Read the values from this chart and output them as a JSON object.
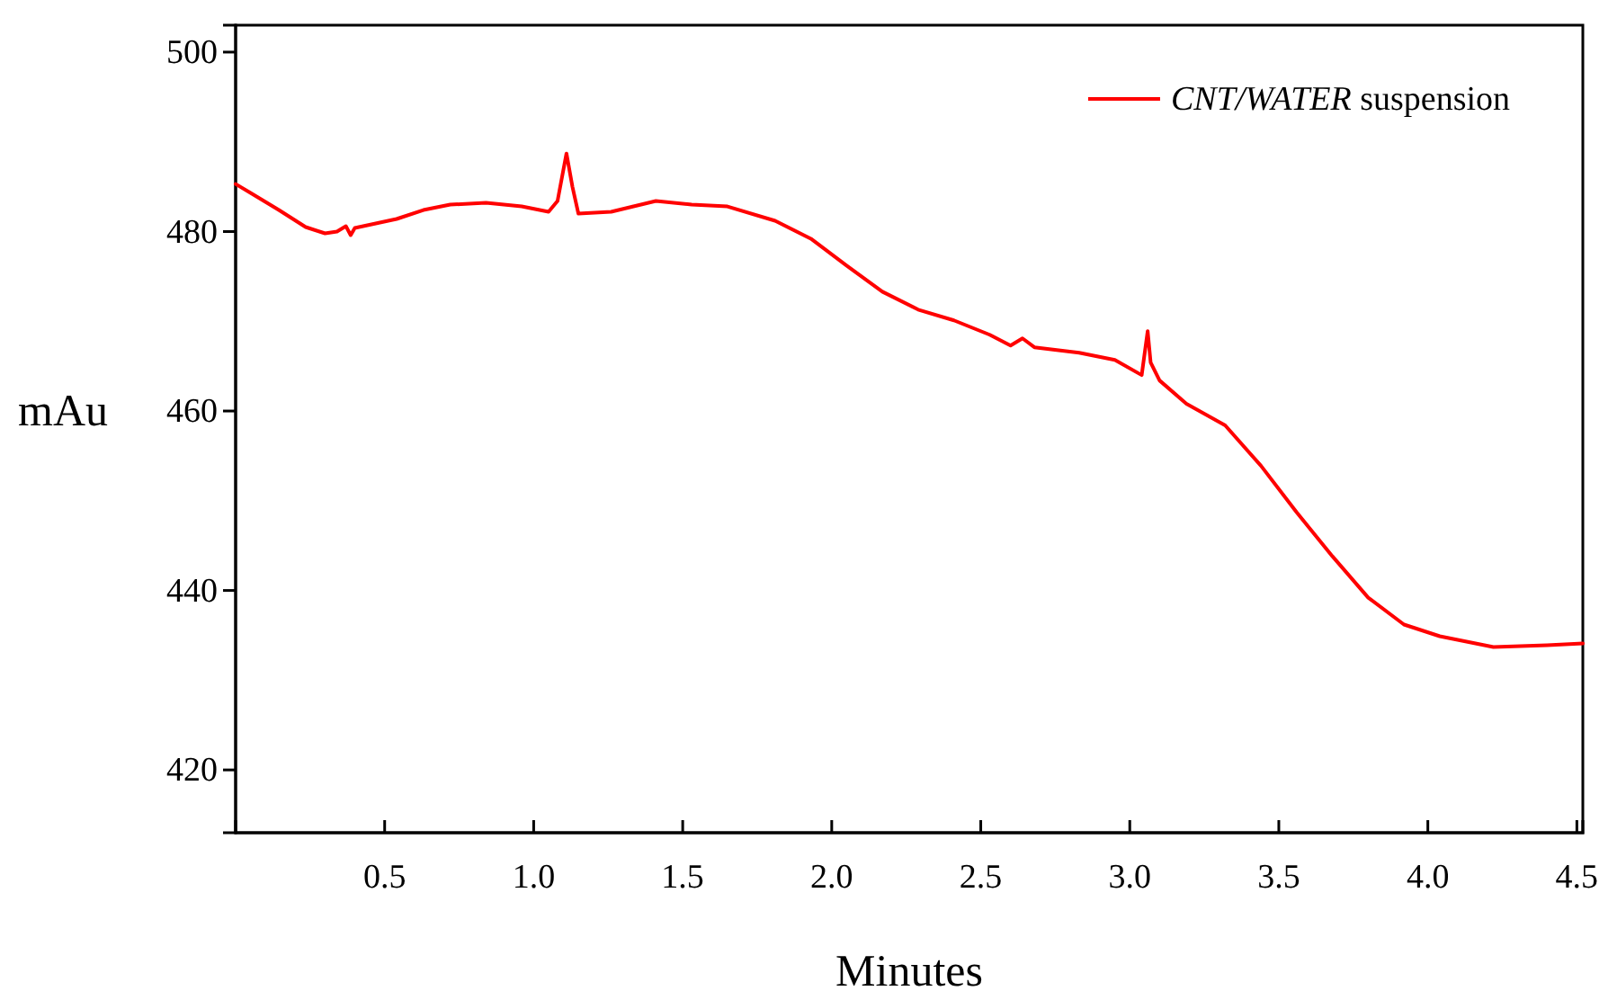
{
  "chart_data": {
    "type": "line",
    "xlabel": "Minutes",
    "ylabel": "mAu",
    "xlim": [
      0,
      4.52
    ],
    "ylim": [
      413,
      503
    ],
    "xticks": [
      0.5,
      {
        "value": 1,
        "label": "1.0"
      },
      1.5,
      {
        "value": 2,
        "label": "2.0"
      },
      2.5,
      {
        "value": 3,
        "label": "3.0"
      },
      3.5,
      {
        "value": 4,
        "label": "4.0"
      },
      4.5
    ],
    "yticks": [
      420,
      440,
      460,
      480,
      500
    ],
    "grid": false,
    "legend": "top right",
    "marker": "none",
    "line_style": "solid",
    "series": [
      {
        "name": "CNT/WATER suspension",
        "color": "#ff0000",
        "x": [
          0,
          0.05,
          0.145,
          0.235,
          0.3,
          0.34,
          0.37,
          0.386,
          0.4,
          0.54,
          0.63,
          0.72,
          0.84,
          0.96,
          1.05,
          1.08,
          1.11,
          1.13,
          1.15,
          1.26,
          1.41,
          1.53,
          1.65,
          1.81,
          1.93,
          2.05,
          2.17,
          2.29,
          2.41,
          2.53,
          2.6,
          2.64,
          2.68,
          2.83,
          2.95,
          3.04,
          3.06,
          3.07,
          3.1,
          3.19,
          3.32,
          3.44,
          3.56,
          3.68,
          3.8,
          3.92,
          4.04,
          4.22,
          4.4,
          4.52
        ],
        "values": [
          485.3,
          484.3,
          482.4,
          480.5,
          479.8,
          480,
          480.6,
          479.6,
          480.4,
          481.4,
          482.4,
          483,
          483.2,
          482.8,
          482.2,
          483.4,
          488.7,
          485,
          482,
          482.2,
          483.4,
          483,
          482.8,
          481.2,
          479.2,
          476.2,
          473.3,
          471.3,
          470.1,
          468.5,
          467.3,
          468.1,
          467.1,
          466.5,
          465.7,
          464,
          468.9,
          465.4,
          463.4,
          460.8,
          458.4,
          453.9,
          448.7,
          443.8,
          439.2,
          436.2,
          434.9,
          433.7,
          433.9,
          434.1
        ]
      }
    ]
  }
}
